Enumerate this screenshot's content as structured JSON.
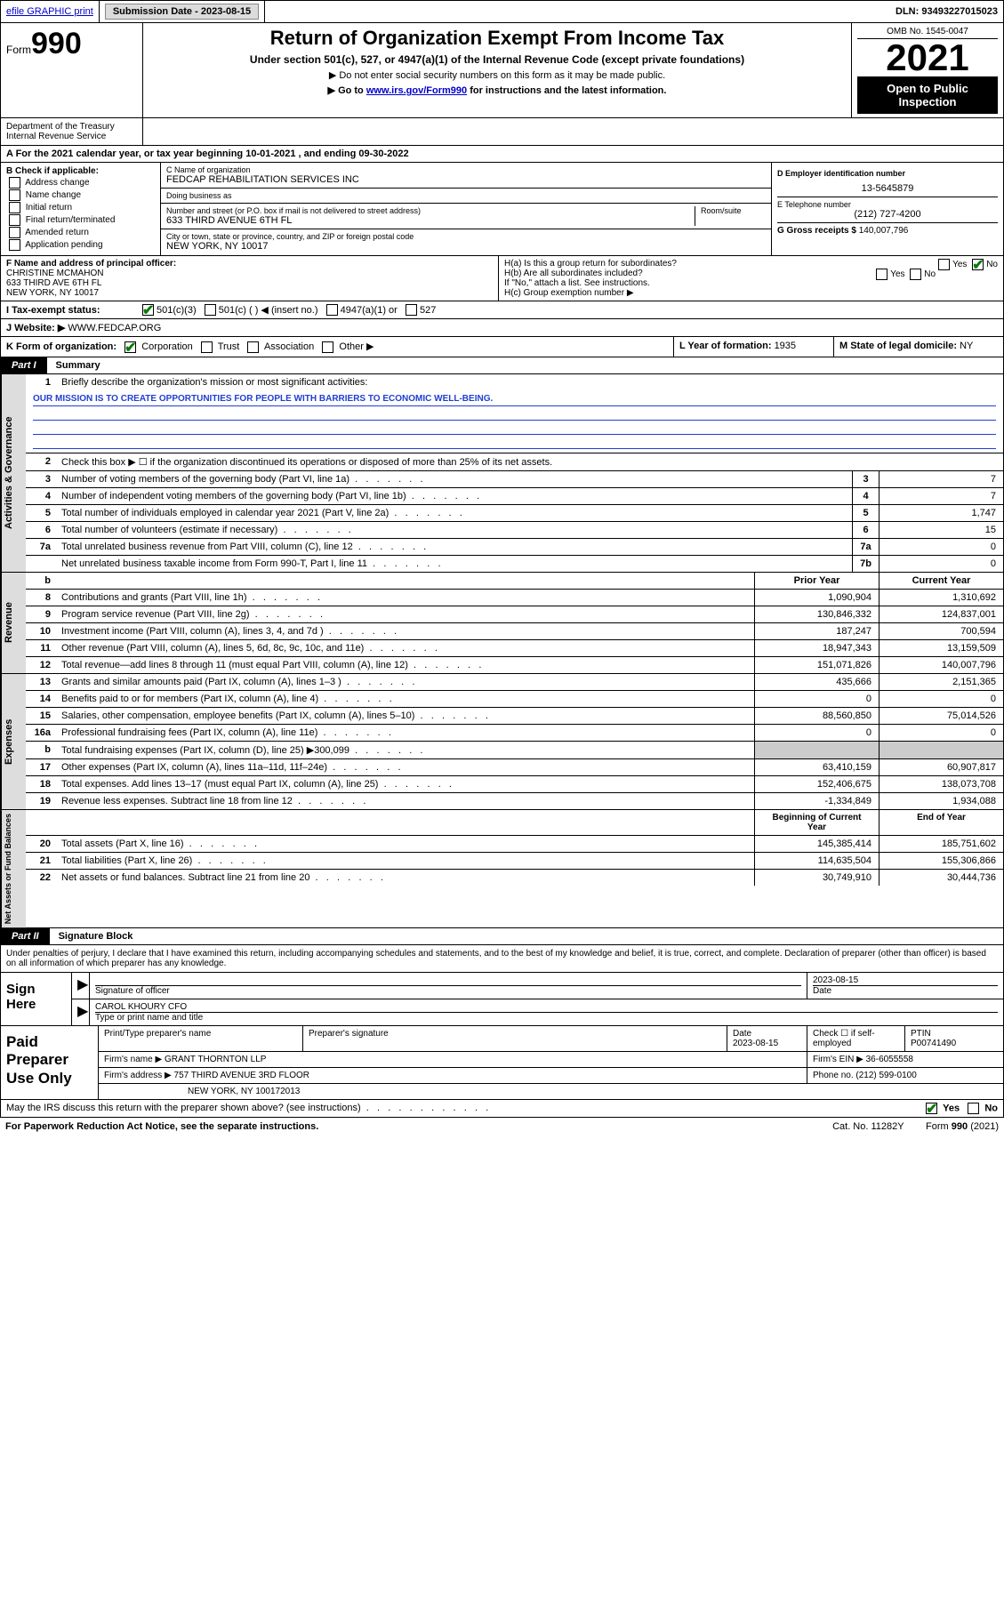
{
  "top": {
    "efile": "efile GRAPHIC print",
    "submission_label": "Submission Date - ",
    "submission_date": "2023-08-15",
    "dln_label": "DLN: ",
    "dln": "93493227015023"
  },
  "header": {
    "form_word": "Form",
    "form_num": "990",
    "title": "Return of Organization Exempt From Income Tax",
    "subtitle": "Under section 501(c), 527, or 4947(a)(1) of the Internal Revenue Code (except private foundations)",
    "instr1": "▶ Do not enter social security numbers on this form as it may be made public.",
    "instr2_pre": "▶ Go to ",
    "instr2_link": "www.irs.gov/Form990",
    "instr2_post": " for instructions and the latest information.",
    "omb": "OMB No. 1545-0047",
    "year": "2021",
    "open": "Open to Public Inspection",
    "dept": "Department of the Treasury Internal Revenue Service"
  },
  "period": {
    "text_pre": "A For the 2021 calendar year, or tax year beginning ",
    "begin": "10-01-2021",
    "mid": " , and ending ",
    "end": "09-30-2022"
  },
  "boxB": {
    "hdr": "B Check if applicable:",
    "opts": [
      "Address change",
      "Name change",
      "Initial return",
      "Final return/terminated",
      "Amended return",
      "Application pending"
    ]
  },
  "boxC": {
    "name_lbl": "C Name of organization",
    "name": "FEDCAP REHABILITATION SERVICES INC",
    "dba_lbl": "Doing business as",
    "dba": "",
    "addr_lbl": "Number and street (or P.O. box if mail is not delivered to street address)",
    "room_lbl": "Room/suite",
    "addr": "633 THIRD AVENUE 6TH FL",
    "city_lbl": "City or town, state or province, country, and ZIP or foreign postal code",
    "city": "NEW YORK, NY  10017"
  },
  "boxD": {
    "lbl": "D Employer identification number",
    "val": "13-5645879"
  },
  "boxE": {
    "lbl": "E Telephone number",
    "val": "(212) 727-4200"
  },
  "boxG": {
    "lbl": "G Gross receipts $ ",
    "val": "140,007,796"
  },
  "boxF": {
    "lbl": "F Name and address of principal officer:",
    "name": "CHRISTINE MCMAHON",
    "l2": "633 THIRD AVE 6TH FL",
    "l3": "NEW YORK, NY  10017"
  },
  "boxH": {
    "ha": "H(a)  Is this a group return for subordinates?",
    "hb": "H(b)  Are all subordinates included?",
    "hb2": "If \"No,\" attach a list. See instructions.",
    "hc": "H(c)  Group exemption number ▶",
    "yes": "Yes",
    "no": "No"
  },
  "boxI": {
    "lbl": "I   Tax-exempt status:",
    "c1": "501(c)(3)",
    "c2": "501(c) (  ) ◀ (insert no.)",
    "c3": "4947(a)(1) or",
    "c4": "527"
  },
  "boxJ": {
    "lbl": "J   Website: ▶ ",
    "val": "WWW.FEDCAP.ORG"
  },
  "boxK": {
    "lbl": "K Form of organization:",
    "o1": "Corporation",
    "o2": "Trust",
    "o3": "Association",
    "o4": "Other ▶"
  },
  "boxL": {
    "lbl": "L Year of formation: ",
    "val": "1935"
  },
  "boxM": {
    "lbl": "M State of legal domicile: ",
    "val": "NY"
  },
  "part1": {
    "tag": "Part I",
    "title": "Summary"
  },
  "gov": {
    "label": "Activities & Governance",
    "l1": "Briefly describe the organization's mission or most significant activities:",
    "mission": "OUR MISSION IS TO CREATE OPPORTUNITIES FOR PEOPLE WITH BARRIERS TO ECONOMIC WELL-BEING.",
    "l2": "Check this box ▶ ☐  if the organization discontinued its operations or disposed of more than 25% of its net assets.",
    "rows": [
      {
        "n": "3",
        "d": "Number of voting members of the governing body (Part VI, line 1a)",
        "box": "3",
        "v": "7"
      },
      {
        "n": "4",
        "d": "Number of independent voting members of the governing body (Part VI, line 1b)",
        "box": "4",
        "v": "7"
      },
      {
        "n": "5",
        "d": "Total number of individuals employed in calendar year 2021 (Part V, line 2a)",
        "box": "5",
        "v": "1,747"
      },
      {
        "n": "6",
        "d": "Total number of volunteers (estimate if necessary)",
        "box": "6",
        "v": "15"
      },
      {
        "n": "7a",
        "d": "Total unrelated business revenue from Part VIII, column (C), line 12",
        "box": "7a",
        "v": "0"
      },
      {
        "n": "",
        "d": "Net unrelated business taxable income from Form 990-T, Part I, line 11",
        "box": "7b",
        "v": "0"
      }
    ]
  },
  "twocol": {
    "prior": "Prior Year",
    "current": "Current Year"
  },
  "rev": {
    "label": "Revenue",
    "rows": [
      {
        "n": "8",
        "d": "Contributions and grants (Part VIII, line 1h)",
        "p": "1,090,904",
        "c": "1,310,692"
      },
      {
        "n": "9",
        "d": "Program service revenue (Part VIII, line 2g)",
        "p": "130,846,332",
        "c": "124,837,001"
      },
      {
        "n": "10",
        "d": "Investment income (Part VIII, column (A), lines 3, 4, and 7d )",
        "p": "187,247",
        "c": "700,594"
      },
      {
        "n": "11",
        "d": "Other revenue (Part VIII, column (A), lines 5, 6d, 8c, 9c, 10c, and 11e)",
        "p": "18,947,343",
        "c": "13,159,509"
      },
      {
        "n": "12",
        "d": "Total revenue—add lines 8 through 11 (must equal Part VIII, column (A), line 12)",
        "p": "151,071,826",
        "c": "140,007,796"
      }
    ]
  },
  "exp": {
    "label": "Expenses",
    "rows": [
      {
        "n": "13",
        "d": "Grants and similar amounts paid (Part IX, column (A), lines 1–3 )",
        "p": "435,666",
        "c": "2,151,365"
      },
      {
        "n": "14",
        "d": "Benefits paid to or for members (Part IX, column (A), line 4)",
        "p": "0",
        "c": "0"
      },
      {
        "n": "15",
        "d": "Salaries, other compensation, employee benefits (Part IX, column (A), lines 5–10)",
        "p": "88,560,850",
        "c": "75,014,526"
      },
      {
        "n": "16a",
        "d": "Professional fundraising fees (Part IX, column (A), line 11e)",
        "p": "0",
        "c": "0"
      },
      {
        "n": "b",
        "d": "Total fundraising expenses (Part IX, column (D), line 25) ▶300,099",
        "p": "",
        "c": "",
        "gray": true
      },
      {
        "n": "17",
        "d": "Other expenses (Part IX, column (A), lines 11a–11d, 11f–24e)",
        "p": "63,410,159",
        "c": "60,907,817"
      },
      {
        "n": "18",
        "d": "Total expenses. Add lines 13–17 (must equal Part IX, column (A), line 25)",
        "p": "152,406,675",
        "c": "138,073,708"
      },
      {
        "n": "19",
        "d": "Revenue less expenses. Subtract line 18 from line 12",
        "p": "-1,334,849",
        "c": "1,934,088"
      }
    ]
  },
  "na": {
    "label": "Net Assets or Fund Balances",
    "hdr_p": "Beginning of Current Year",
    "hdr_c": "End of Year",
    "rows": [
      {
        "n": "20",
        "d": "Total assets (Part X, line 16)",
        "p": "145,385,414",
        "c": "185,751,602"
      },
      {
        "n": "21",
        "d": "Total liabilities (Part X, line 26)",
        "p": "114,635,504",
        "c": "155,306,866"
      },
      {
        "n": "22",
        "d": "Net assets or fund balances. Subtract line 21 from line 20",
        "p": "30,749,910",
        "c": "30,444,736"
      }
    ]
  },
  "part2": {
    "tag": "Part II",
    "title": "Signature Block"
  },
  "perjury": "Under penalties of perjury, I declare that I have examined this return, including accompanying schedules and statements, and to the best of my knowledge and belief, it is true, correct, and complete. Declaration of preparer (other than officer) is based on all information of which preparer has any knowledge.",
  "sign": {
    "left": "Sign Here",
    "sig_lbl": "Signature of officer",
    "date_lbl": "Date",
    "date": "2023-08-15",
    "name": "CAROL KHOURY CFO",
    "name_lbl": "Type or print name and title"
  },
  "paid": {
    "left": "Paid Preparer Use Only",
    "h1": "Print/Type preparer's name",
    "h2": "Preparer's signature",
    "h3": "Date",
    "h3v": "2023-08-15",
    "h4": "Check ☐ if self-employed",
    "h5": "PTIN",
    "h5v": "P00741490",
    "firm_lbl": "Firm's name    ▶ ",
    "firm": "GRANT THORNTON LLP",
    "ein_lbl": "Firm's EIN ▶ ",
    "ein": "36-6055558",
    "addr_lbl": "Firm's address ▶ ",
    "addr1": "757 THIRD AVENUE 3RD FLOOR",
    "addr2": "NEW YORK, NY  100172013",
    "phone_lbl": "Phone no. ",
    "phone": "(212) 599-0100"
  },
  "footer": {
    "discuss": "May the IRS discuss this return with the preparer shown above? (see instructions)",
    "yes": "Yes",
    "no": "No",
    "pra": "For Paperwork Reduction Act Notice, see the separate instructions.",
    "cat": "Cat. No. 11282Y",
    "form": "Form 990 (2021)"
  }
}
